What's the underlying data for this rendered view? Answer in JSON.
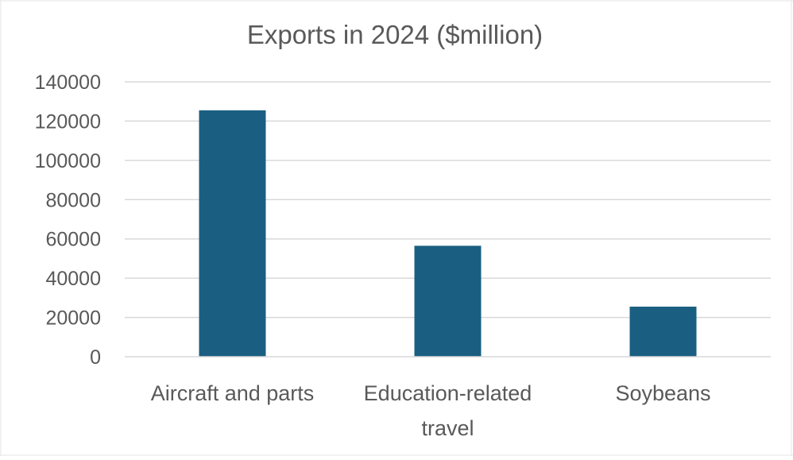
{
  "chart_data": {
    "type": "bar",
    "title": "Exports in 2024 ($million)",
    "xlabel": "",
    "ylabel": "",
    "categories": [
      "Aircraft and parts",
      "Education-related travel",
      "Soybeans"
    ],
    "category_lines": [
      [
        "Aircraft and parts"
      ],
      [
        "Education-related",
        "travel"
      ],
      [
        "Soybeans"
      ]
    ],
    "values": [
      125500,
      56500,
      25500
    ],
    "ylim": [
      0,
      140000
    ],
    "yticks": [
      0,
      20000,
      40000,
      60000,
      80000,
      100000,
      120000,
      140000
    ],
    "ytick_labels": [
      "0",
      "20000",
      "40000",
      "60000",
      "80000",
      "100000",
      "120000",
      "140000"
    ],
    "grid": true,
    "legend": "none",
    "bar_color": "#1a5f82",
    "gridline_color": "#d9d9d9",
    "text_color": "#595959"
  }
}
